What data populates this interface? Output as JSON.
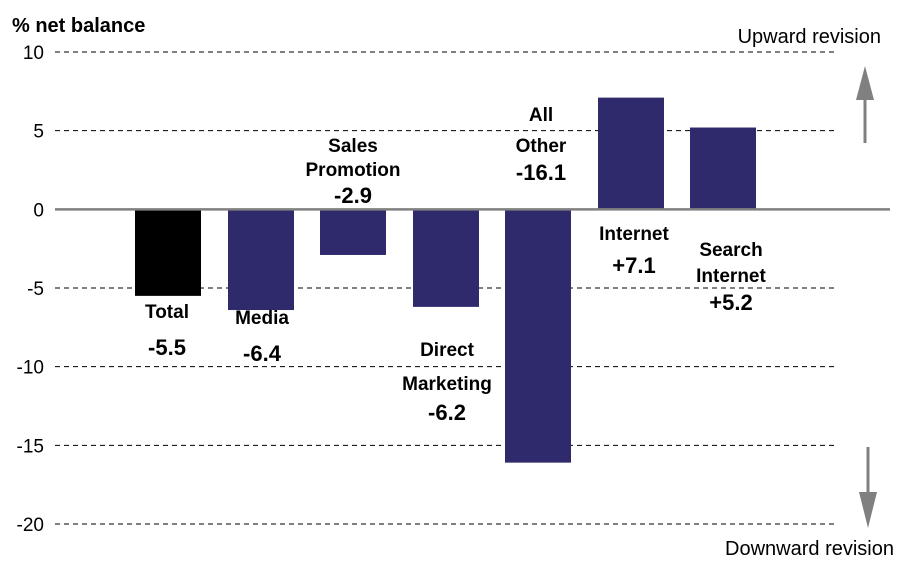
{
  "chart_data": {
    "type": "bar",
    "ylabel": "% net balance",
    "ylim": [
      -20,
      10
    ],
    "yticks": [
      10,
      5,
      0,
      -5,
      -10,
      -15,
      -20
    ],
    "grid": true,
    "categories": [
      "Total",
      "Media",
      "Sales Promotion",
      "Direct Marketing",
      "All Other",
      "Internet",
      "Search Internet"
    ],
    "value_labels": [
      "-5.5",
      "-6.4",
      "-2.9",
      "-6.2",
      "-16.1",
      "+7.1",
      "+5.2"
    ],
    "values": [
      -5.5,
      -6.4,
      -2.9,
      -6.2,
      -16.1,
      7.1,
      5.2
    ],
    "colors": [
      "#000000",
      "#2e2a6b",
      "#2e2a6b",
      "#2e2a6b",
      "#2e2a6b",
      "#2e2a6b",
      "#2e2a6b"
    ],
    "annotations": {
      "upward": "Upward revision",
      "downward": "Downward revision"
    },
    "arrow_color": "#808080"
  }
}
